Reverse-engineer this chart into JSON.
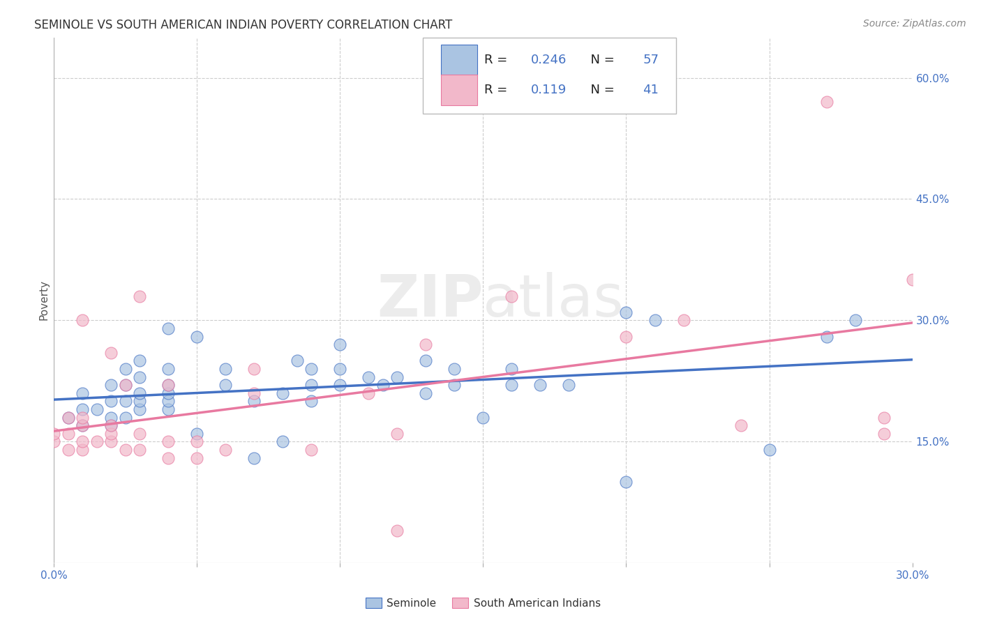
{
  "title": "SEMINOLE VS SOUTH AMERICAN INDIAN POVERTY CORRELATION CHART",
  "source": "Source: ZipAtlas.com",
  "ylabel": "Poverty",
  "xlim": [
    0.0,
    0.3
  ],
  "ylim": [
    0.0,
    0.65
  ],
  "xtick_positions": [
    0.0,
    0.05,
    0.1,
    0.15,
    0.2,
    0.25,
    0.3
  ],
  "xticklabels_bottom": [
    "0.0%",
    "",
    "",
    "",
    "",
    "",
    "30.0%"
  ],
  "yticks_right": [
    0.15,
    0.3,
    0.45,
    0.6
  ],
  "ytick_right_labels": [
    "15.0%",
    "30.0%",
    "45.0%",
    "60.0%"
  ],
  "legend_R1": "0.246",
  "legend_N1": "57",
  "legend_R2": "0.119",
  "legend_N2": "41",
  "seminole_color": "#aac4e2",
  "south_american_color": "#f2b8ca",
  "line_seminole_color": "#4472c4",
  "line_south_american_color": "#e879a0",
  "watermark": "ZIPatlas",
  "legend_label1": "Seminole",
  "legend_label2": "South American Indians",
  "seminole_x": [
    0.005,
    0.01,
    0.01,
    0.01,
    0.015,
    0.02,
    0.02,
    0.02,
    0.02,
    0.025,
    0.025,
    0.025,
    0.025,
    0.03,
    0.03,
    0.03,
    0.03,
    0.03,
    0.04,
    0.04,
    0.04,
    0.04,
    0.04,
    0.04,
    0.05,
    0.05,
    0.06,
    0.06,
    0.07,
    0.07,
    0.08,
    0.08,
    0.085,
    0.09,
    0.09,
    0.09,
    0.1,
    0.1,
    0.1,
    0.11,
    0.115,
    0.12,
    0.13,
    0.13,
    0.14,
    0.14,
    0.15,
    0.16,
    0.16,
    0.17,
    0.18,
    0.2,
    0.2,
    0.21,
    0.25,
    0.27,
    0.28
  ],
  "seminole_y": [
    0.18,
    0.17,
    0.19,
    0.21,
    0.19,
    0.17,
    0.18,
    0.2,
    0.22,
    0.18,
    0.2,
    0.22,
    0.24,
    0.19,
    0.2,
    0.21,
    0.23,
    0.25,
    0.19,
    0.2,
    0.21,
    0.22,
    0.24,
    0.29,
    0.16,
    0.28,
    0.22,
    0.24,
    0.13,
    0.2,
    0.15,
    0.21,
    0.25,
    0.2,
    0.22,
    0.24,
    0.22,
    0.24,
    0.27,
    0.23,
    0.22,
    0.23,
    0.21,
    0.25,
    0.22,
    0.24,
    0.18,
    0.22,
    0.24,
    0.22,
    0.22,
    0.1,
    0.31,
    0.3,
    0.14,
    0.28,
    0.3
  ],
  "south_x": [
    0.0,
    0.0,
    0.005,
    0.005,
    0.005,
    0.01,
    0.01,
    0.01,
    0.01,
    0.01,
    0.015,
    0.02,
    0.02,
    0.02,
    0.02,
    0.025,
    0.025,
    0.03,
    0.03,
    0.03,
    0.04,
    0.04,
    0.04,
    0.05,
    0.05,
    0.06,
    0.07,
    0.07,
    0.09,
    0.11,
    0.12,
    0.12,
    0.13,
    0.16,
    0.2,
    0.22,
    0.24,
    0.27,
    0.29,
    0.29,
    0.3
  ],
  "south_y": [
    0.15,
    0.16,
    0.14,
    0.16,
    0.18,
    0.14,
    0.15,
    0.17,
    0.18,
    0.3,
    0.15,
    0.15,
    0.16,
    0.17,
    0.26,
    0.14,
    0.22,
    0.14,
    0.16,
    0.33,
    0.13,
    0.15,
    0.22,
    0.13,
    0.15,
    0.14,
    0.21,
    0.24,
    0.14,
    0.21,
    0.04,
    0.16,
    0.27,
    0.33,
    0.28,
    0.3,
    0.17,
    0.57,
    0.16,
    0.18,
    0.35
  ]
}
